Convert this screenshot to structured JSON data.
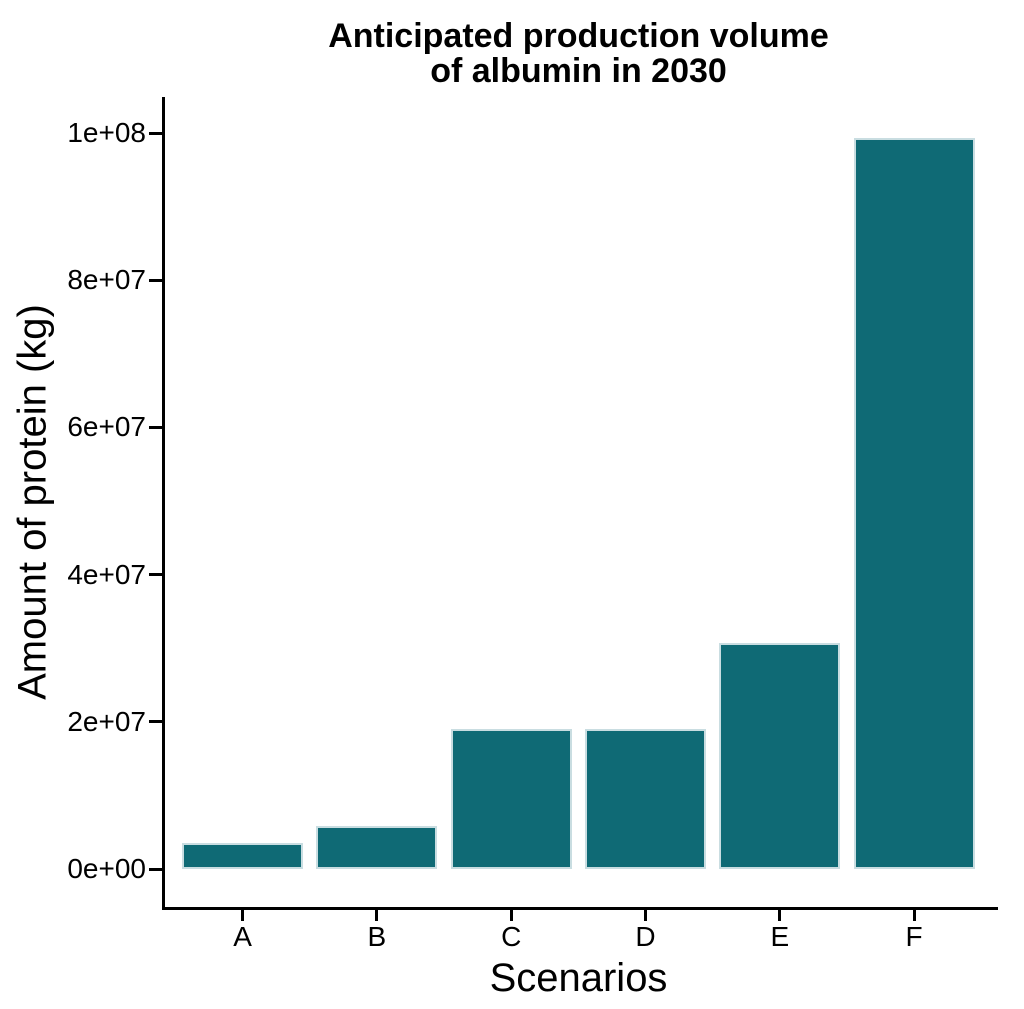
{
  "chart": {
    "title_line1": "Anticipated production volume",
    "title_line2": "of albumin in 2030",
    "xlabel": "Scenarios",
    "ylabel": "Amount of protein (kg)"
  },
  "chart_data": {
    "type": "bar",
    "title": "Anticipated production volume of albumin in 2030",
    "xlabel": "Scenarios",
    "ylabel": "Amount of protein (kg)",
    "categories": [
      "A",
      "B",
      "C",
      "D",
      "E",
      "F"
    ],
    "values": [
      3500000,
      5800000,
      19000000,
      19000000,
      30700000,
      99300000
    ],
    "ylim": [
      0,
      100000000
    ],
    "yticks": [
      {
        "value": 0,
        "label": "0e+00"
      },
      {
        "value": 20000000,
        "label": "2e+07"
      },
      {
        "value": 40000000,
        "label": "4e+07"
      },
      {
        "value": 60000000,
        "label": "6e+07"
      },
      {
        "value": 80000000,
        "label": "8e+07"
      },
      {
        "value": 100000000,
        "label": "1e+08"
      }
    ],
    "grid": false,
    "legend_position": "none",
    "bar_fill": "#0f6a75",
    "bar_stroke": "#c9dde1",
    "axis_color": "#000000",
    "background": "#ffffff"
  }
}
